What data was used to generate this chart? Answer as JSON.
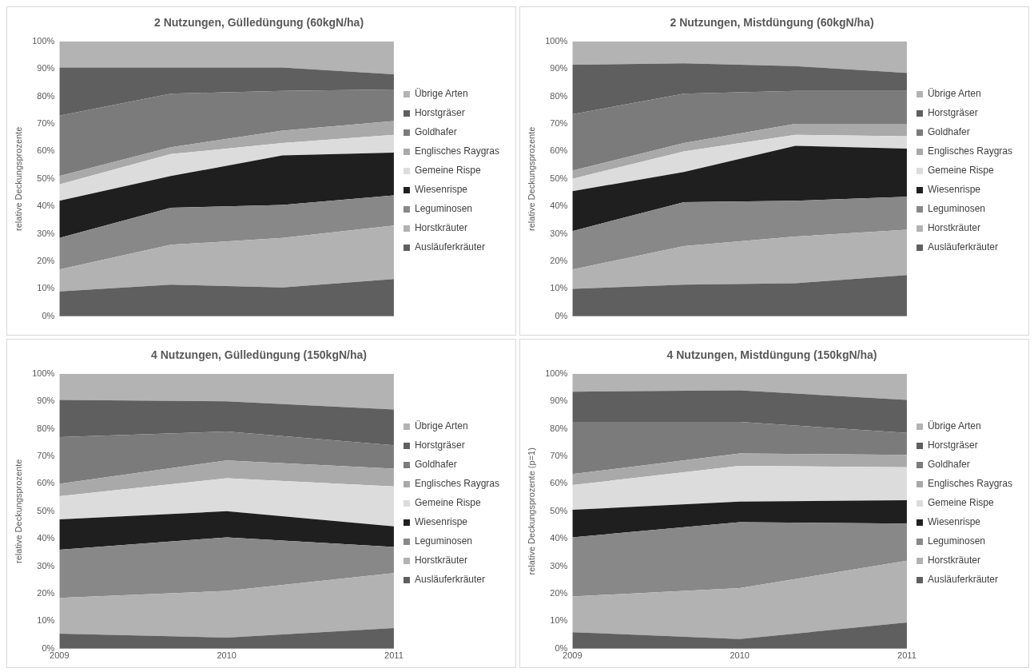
{
  "chart_data": [
    {
      "type": "area",
      "stacked": true,
      "title": "2 Nutzungen, Gülledüngung (60kgN/ha)",
      "ylabel": "relative Deckungsprozente",
      "categories": [
        null,
        null,
        null,
        null
      ],
      "ylim": [
        0,
        100
      ],
      "yticks": [
        {
          "value": 0,
          "label": "0%"
        },
        {
          "value": 10,
          "label": "10%"
        },
        {
          "value": 20,
          "label": "20%"
        },
        {
          "value": 30,
          "label": "30%"
        },
        {
          "value": 40,
          "label": "40%"
        },
        {
          "value": 50,
          "label": "50%"
        },
        {
          "value": 60,
          "label": "60%"
        },
        {
          "value": 70,
          "label": "70%"
        },
        {
          "value": 80,
          "label": "80%"
        },
        {
          "value": 90,
          "label": "90%"
        },
        {
          "value": 100,
          "label": "100%"
        }
      ],
      "grid": false,
      "legend": "right",
      "series": [
        {
          "name": "Ausläuferkräuter",
          "color": "#5f5f5f",
          "values": [
            9,
            11.5,
            10.5,
            13.5
          ]
        },
        {
          "name": "Horstkräuter",
          "color": "#b2b2b2",
          "values": [
            8,
            14.5,
            18,
            19.5
          ]
        },
        {
          "name": "Leguminosen",
          "color": "#888888",
          "values": [
            11.5,
            13.5,
            12,
            11
          ]
        },
        {
          "name": "Wiesenrispe",
          "color": "#1f1f1f",
          "values": [
            13.5,
            11.5,
            18,
            15.5
          ]
        },
        {
          "name": "Gemeine Rispe",
          "color": "#dcdcdc",
          "values": [
            6,
            8,
            4.5,
            6.5
          ]
        },
        {
          "name": "Englisches Raygras",
          "color": "#a9a9a9",
          "values": [
            3,
            2.5,
            4.5,
            5
          ]
        },
        {
          "name": "Goldhafer",
          "color": "#7b7b7b",
          "values": [
            22,
            19.5,
            14.5,
            11.5
          ]
        },
        {
          "name": "Horstgräser",
          "color": "#5f5f5f",
          "values": [
            17.5,
            9.5,
            8.5,
            5.5
          ]
        },
        {
          "name": "Übrige Arten",
          "color": "#b3b3b3",
          "values": [
            9.5,
            9.5,
            9.5,
            12
          ]
        }
      ]
    },
    {
      "type": "area",
      "stacked": true,
      "title": "2 Nutzungen, Mistdüngung (60kgN/ha)",
      "ylabel": "relative Deckungsprozente",
      "categories": [
        null,
        null,
        null,
        null
      ],
      "ylim": [
        0,
        100
      ],
      "yticks": [
        {
          "value": 0,
          "label": "0%"
        },
        {
          "value": 10,
          "label": "10%"
        },
        {
          "value": 20,
          "label": "20%"
        },
        {
          "value": 30,
          "label": "30%"
        },
        {
          "value": 40,
          "label": "40%"
        },
        {
          "value": 50,
          "label": "50%"
        },
        {
          "value": 60,
          "label": "60%"
        },
        {
          "value": 70,
          "label": "70%"
        },
        {
          "value": 80,
          "label": "80%"
        },
        {
          "value": 90,
          "label": "90%"
        },
        {
          "value": 100,
          "label": "100%"
        }
      ],
      "grid": false,
      "legend": "right",
      "series": [
        {
          "name": "Ausläuferkräuter",
          "color": "#5f5f5f",
          "values": [
            10,
            11.5,
            12,
            15
          ]
        },
        {
          "name": "Horstkräuter",
          "color": "#b2b2b2",
          "values": [
            7,
            14,
            17,
            16.5
          ]
        },
        {
          "name": "Leguminosen",
          "color": "#888888",
          "values": [
            14,
            16,
            13,
            12
          ]
        },
        {
          "name": "Wiesenrispe",
          "color": "#1f1f1f",
          "values": [
            14.5,
            11,
            20,
            17.5
          ]
        },
        {
          "name": "Gemeine Rispe",
          "color": "#dcdcdc",
          "values": [
            4.5,
            7.5,
            4,
            4.5
          ]
        },
        {
          "name": "Englisches Raygras",
          "color": "#a9a9a9",
          "values": [
            3,
            3,
            4,
            4.5
          ]
        },
        {
          "name": "Goldhafer",
          "color": "#7b7b7b",
          "values": [
            20.5,
            18,
            12,
            12
          ]
        },
        {
          "name": "Horstgräser",
          "color": "#5f5f5f",
          "values": [
            18,
            11,
            9,
            6.5
          ]
        },
        {
          "name": "Übrige Arten",
          "color": "#b3b3b3",
          "values": [
            8.5,
            8,
            9,
            11.5
          ]
        }
      ]
    },
    {
      "type": "area",
      "stacked": true,
      "title": "4 Nutzungen, Gülledüngung (150kgN/ha)",
      "ylabel": "relative Deckungsprozente",
      "categories": [
        "2009",
        "2010",
        "2011"
      ],
      "ylim": [
        0,
        100
      ],
      "yticks": [
        {
          "value": 0,
          "label": "0%"
        },
        {
          "value": 10,
          "label": "10%"
        },
        {
          "value": 20,
          "label": "20%"
        },
        {
          "value": 30,
          "label": "30%"
        },
        {
          "value": 40,
          "label": "40%"
        },
        {
          "value": 50,
          "label": "50%"
        },
        {
          "value": 60,
          "label": "60%"
        },
        {
          "value": 70,
          "label": "70%"
        },
        {
          "value": 80,
          "label": "80%"
        },
        {
          "value": 90,
          "label": "90%"
        },
        {
          "value": 100,
          "label": "100%"
        }
      ],
      "grid": false,
      "legend": "right",
      "series": [
        {
          "name": "Ausläuferkräuter",
          "color": "#5f5f5f",
          "values": [
            5.5,
            4,
            7.5
          ]
        },
        {
          "name": "Horstkräuter",
          "color": "#b2b2b2",
          "values": [
            13,
            17,
            20
          ]
        },
        {
          "name": "Leguminosen",
          "color": "#888888",
          "values": [
            17.5,
            19.5,
            9.5
          ]
        },
        {
          "name": "Wiesenrispe",
          "color": "#1f1f1f",
          "values": [
            11,
            9.5,
            7.5
          ]
        },
        {
          "name": "Gemeine Rispe",
          "color": "#dcdcdc",
          "values": [
            8.5,
            12,
            14.5
          ]
        },
        {
          "name": "Englisches Raygras",
          "color": "#a9a9a9",
          "values": [
            4.5,
            6.5,
            6.5
          ]
        },
        {
          "name": "Goldhafer",
          "color": "#7b7b7b",
          "values": [
            17,
            10.5,
            8.5
          ]
        },
        {
          "name": "Horstgräser",
          "color": "#5f5f5f",
          "values": [
            13.5,
            11,
            13
          ]
        },
        {
          "name": "Übrige Arten",
          "color": "#b3b3b3",
          "values": [
            9.5,
            10,
            13
          ]
        }
      ]
    },
    {
      "type": "area",
      "stacked": true,
      "title": "4 Nutzungen, Mistdüngung (150kgN/ha)",
      "ylabel": "relative Deckungsprozente (p=1)",
      "categories": [
        "2009",
        "2010",
        "2011"
      ],
      "ylim": [
        0,
        100
      ],
      "yticks": [
        {
          "value": 0,
          "label": "0%"
        },
        {
          "value": 10,
          "label": "10%"
        },
        {
          "value": 20,
          "label": "20%"
        },
        {
          "value": 30,
          "label": "30%"
        },
        {
          "value": 40,
          "label": "40%"
        },
        {
          "value": 50,
          "label": "50%"
        },
        {
          "value": 60,
          "label": "60%"
        },
        {
          "value": 70,
          "label": "70%"
        },
        {
          "value": 80,
          "label": "80%"
        },
        {
          "value": 90,
          "label": "90%"
        },
        {
          "value": 100,
          "label": "100%"
        }
      ],
      "grid": false,
      "legend": "right",
      "series": [
        {
          "name": "Ausläuferkräuter",
          "color": "#5f5f5f",
          "values": [
            6,
            3.5,
            9.5
          ]
        },
        {
          "name": "Horstkräuter",
          "color": "#b2b2b2",
          "values": [
            13,
            18.5,
            22.5
          ]
        },
        {
          "name": "Leguminosen",
          "color": "#888888",
          "values": [
            21.5,
            24,
            13.5
          ]
        },
        {
          "name": "Wiesenrispe",
          "color": "#1f1f1f",
          "values": [
            10,
            7.5,
            8.5
          ]
        },
        {
          "name": "Gemeine Rispe",
          "color": "#dcdcdc",
          "values": [
            9,
            13,
            12
          ]
        },
        {
          "name": "Englisches Raygras",
          "color": "#a9a9a9",
          "values": [
            4,
            4.5,
            4.5
          ]
        },
        {
          "name": "Goldhafer",
          "color": "#7b7b7b",
          "values": [
            19,
            11.5,
            8
          ]
        },
        {
          "name": "Horstgräser",
          "color": "#5f5f5f",
          "values": [
            11,
            11.5,
            12
          ]
        },
        {
          "name": "Übrige Arten",
          "color": "#b3b3b3",
          "values": [
            6.5,
            6,
            9.5
          ]
        }
      ]
    }
  ]
}
